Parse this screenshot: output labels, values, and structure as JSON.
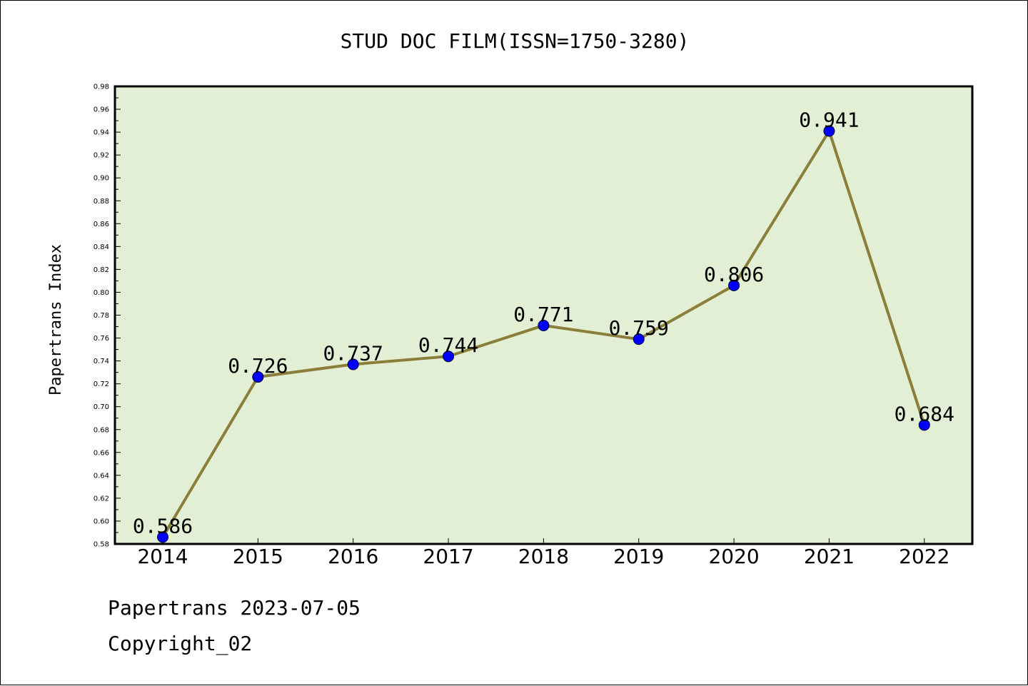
{
  "chart_data": {
    "type": "line",
    "title": "STUD DOC FILM(ISSN=1750-3280)",
    "xlabel": "",
    "ylabel": "Papertrans Index",
    "categories": [
      "2014",
      "2015",
      "2016",
      "2017",
      "2018",
      "2019",
      "2020",
      "2021",
      "2022"
    ],
    "series": [
      {
        "values": [
          0.586,
          0.726,
          0.737,
          0.744,
          0.771,
          0.759,
          0.806,
          0.941,
          0.684
        ]
      }
    ],
    "data_labels": [
      "0.586",
      "0.726",
      "0.737",
      "0.744",
      "0.771",
      "0.759",
      "0.806",
      "0.941",
      "0.684"
    ],
    "ylim": [
      0.58,
      0.98
    ],
    "yticks": [
      "0.58",
      "0.60",
      "0.62",
      "0.64",
      "0.66",
      "0.68",
      "0.70",
      "0.72",
      "0.74",
      "0.76",
      "0.78",
      "0.80",
      "0.82",
      "0.84",
      "0.86",
      "0.88",
      "0.90",
      "0.92",
      "0.94",
      "0.96",
      "0.98"
    ],
    "grid": false,
    "colors": {
      "plot_background": "#e2efd4",
      "line": "#8b7d3a",
      "marker": "#0000ff"
    }
  },
  "footer": {
    "line1": "Papertrans 2023-07-05",
    "line2": "Copyright_02"
  }
}
